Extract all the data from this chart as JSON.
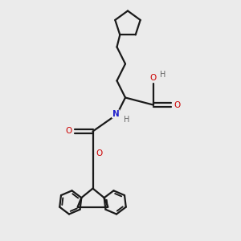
{
  "background_color": "#ebebeb",
  "bond_color": "#1a1a1a",
  "o_color": "#cc0000",
  "n_color": "#2222cc",
  "h_color": "#666666",
  "line_width": 1.6,
  "figsize": [
    3.0,
    3.0
  ],
  "dpi": 100,
  "xlim": [
    0,
    10
  ],
  "ylim": [
    0,
    10
  ]
}
